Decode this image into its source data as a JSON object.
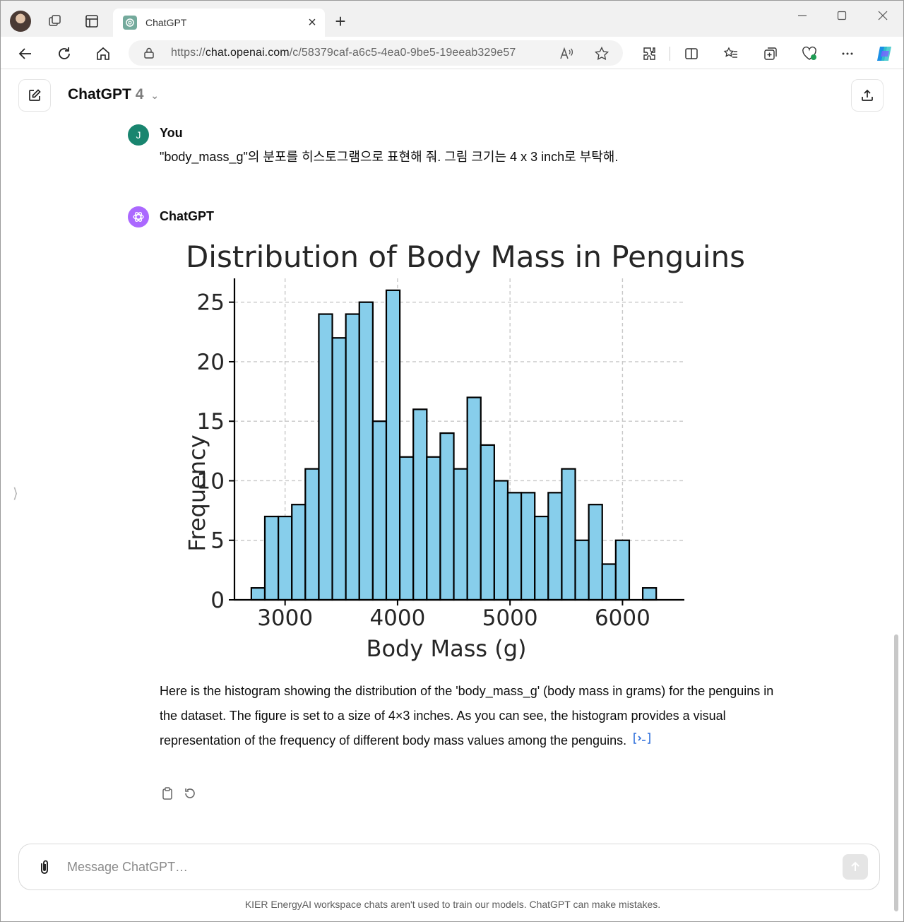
{
  "browser": {
    "tab_title": "ChatGPT",
    "url_prefix": "https://",
    "url_host": "chat.openai.com",
    "url_path": "/c/58379caf-a6c5-4ea0-9be5-19eeab329e57"
  },
  "header": {
    "model_name": "ChatGPT",
    "model_version": "4",
    "chevron": "⌄"
  },
  "conversation": {
    "user_name": "You",
    "user_initial": "J",
    "user_message": "\"body_mass_g\"의 분포를 히스토그램으로 표현해 줘. 그림 크기는 4 x 3 inch로 부탁해.",
    "assistant_name": "ChatGPT",
    "assistant_reply": "Here is the histogram showing the distribution of the 'body_mass_g' (body mass in grams) for the penguins in the dataset. The figure is set to a size of 4×3 inches. As you can see, the histogram provides a visual representation of the frequency of different body mass values among the penguins."
  },
  "composer": {
    "placeholder": "Message ChatGPT…"
  },
  "footer": {
    "note": "KIER EnergyAI workspace chats aren't used to train our models. ChatGPT can make mistakes."
  },
  "colors": {
    "bar_fill": "#87ceeb",
    "bar_edge": "#000000",
    "user_avatar": "#19856f",
    "assistant_avatar": "#ab68ff"
  },
  "chart_data": {
    "type": "bar",
    "title": "Distribution of Body Mass in Penguins",
    "xlabel": "Body Mass (g)",
    "ylabel": "Frequency",
    "xlim": [
      2550,
      6550
    ],
    "ylim": [
      0,
      27
    ],
    "xticks": [
      3000,
      4000,
      5000,
      6000
    ],
    "yticks": [
      0,
      5,
      10,
      15,
      20,
      25
    ],
    "grid": true,
    "bin_start": 2700,
    "bin_width": 120,
    "values": [
      1,
      7,
      7,
      8,
      11,
      24,
      22,
      24,
      25,
      15,
      26,
      12,
      16,
      12,
      14,
      11,
      17,
      13,
      10,
      9,
      9,
      7,
      9,
      11,
      5,
      8,
      3,
      5,
      0,
      1
    ]
  }
}
